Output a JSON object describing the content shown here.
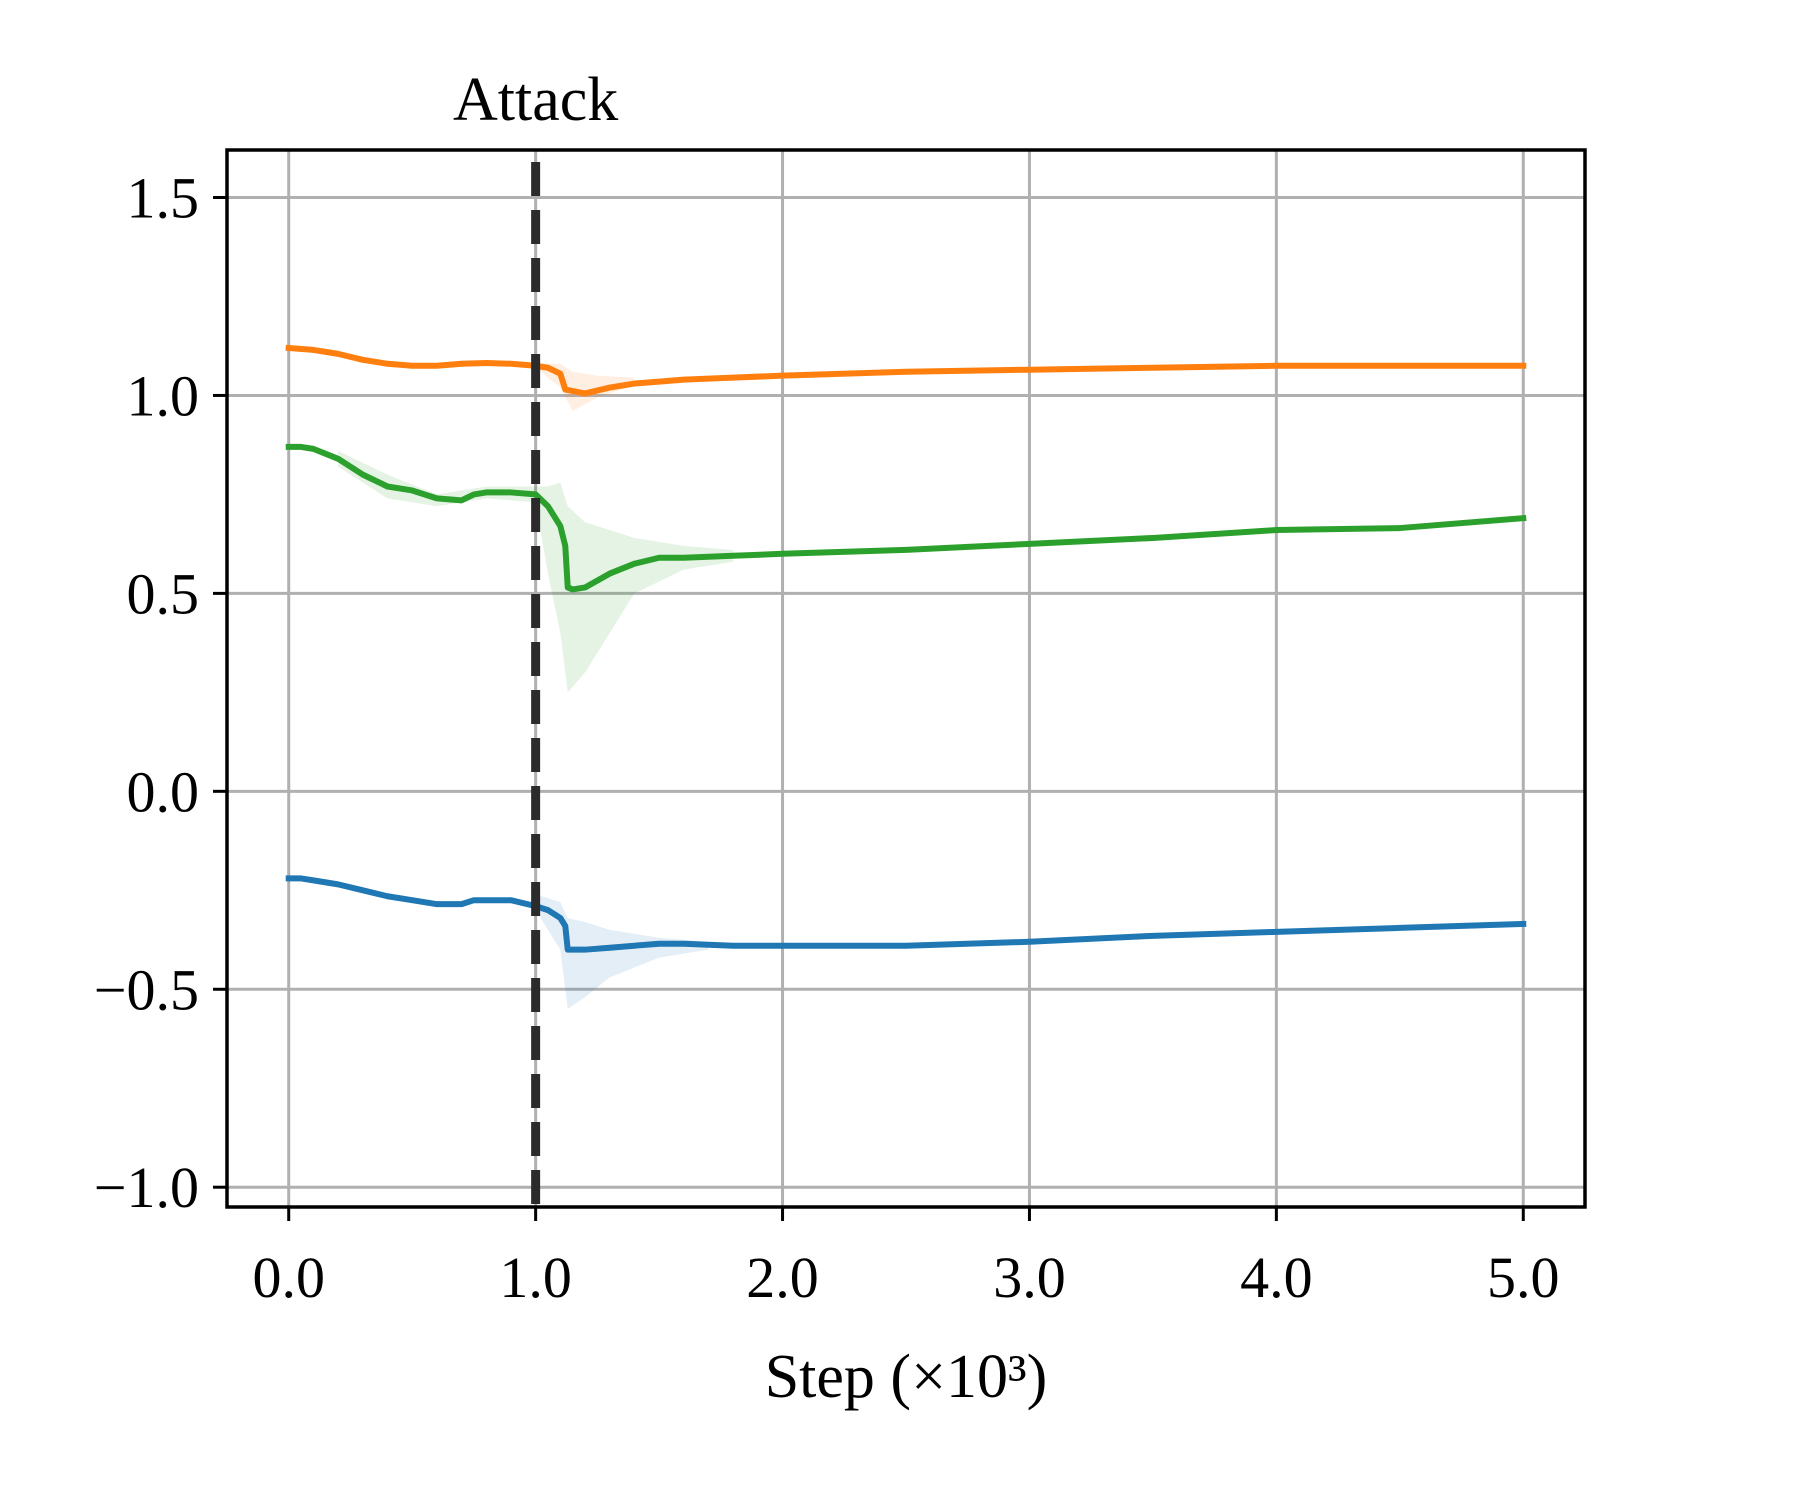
{
  "chart_data": {
    "type": "line",
    "title": "",
    "xlabel": "Step (×10³)",
    "ylabel": "",
    "xlim": [
      -0.25,
      5.25
    ],
    "ylim": [
      -1.05,
      1.62
    ],
    "xticks": [
      0,
      1,
      2,
      3,
      4,
      5
    ],
    "xtick_labels": [
      "0.0",
      "1.0",
      "2.0",
      "3.0",
      "4.0",
      "5.0"
    ],
    "yticks": [
      -1.0,
      -0.5,
      0.0,
      0.5,
      1.0,
      1.5
    ],
    "ytick_labels": [
      "−1.0",
      "−0.5",
      "0.0",
      "0.5",
      "1.0",
      "1.5"
    ],
    "grid": true,
    "annotations": [
      {
        "text": "Attack",
        "x": 1.0,
        "style": "dashed vertical line"
      }
    ],
    "series": [
      {
        "color": "#ff7f0e",
        "x": [
          0,
          0.1,
          0.2,
          0.3,
          0.4,
          0.5,
          0.6,
          0.7,
          0.8,
          0.9,
          1.0,
          1.05,
          1.1,
          1.12,
          1.2,
          1.3,
          1.4,
          1.5,
          1.6,
          1.8,
          2.0,
          2.5,
          3.0,
          3.5,
          4.0,
          4.5,
          5.0
        ],
        "y": [
          1.12,
          1.115,
          1.105,
          1.09,
          1.08,
          1.075,
          1.075,
          1.08,
          1.082,
          1.08,
          1.075,
          1.07,
          1.055,
          1.015,
          1.005,
          1.02,
          1.03,
          1.035,
          1.04,
          1.045,
          1.05,
          1.06,
          1.065,
          1.07,
          1.075,
          1.075,
          1.075
        ],
        "band_x": [
          1.0,
          1.1,
          1.15,
          1.25,
          1.4
        ],
        "band_lower": [
          1.07,
          1.02,
          0.96,
          0.995,
          1.025
        ],
        "band_upper": [
          1.08,
          1.08,
          1.06,
          1.05,
          1.045
        ]
      },
      {
        "color": "#2ca02c",
        "x": [
          0,
          0.05,
          0.1,
          0.2,
          0.3,
          0.4,
          0.5,
          0.6,
          0.7,
          0.75,
          0.8,
          0.9,
          1.0,
          1.05,
          1.1,
          1.12,
          1.13,
          1.15,
          1.2,
          1.3,
          1.4,
          1.5,
          1.6,
          1.8,
          2.0,
          2.5,
          3.0,
          3.5,
          4.0,
          4.5,
          5.0
        ],
        "y": [
          0.87,
          0.87,
          0.865,
          0.84,
          0.8,
          0.77,
          0.76,
          0.74,
          0.735,
          0.75,
          0.755,
          0.755,
          0.75,
          0.72,
          0.67,
          0.62,
          0.515,
          0.51,
          0.515,
          0.55,
          0.575,
          0.59,
          0.59,
          0.595,
          0.6,
          0.61,
          0.625,
          0.64,
          0.66,
          0.665,
          0.69
        ],
        "band_x": [
          0.2,
          0.4,
          0.6,
          0.8,
          1.0,
          1.05,
          1.1,
          1.13,
          1.2,
          1.3,
          1.4,
          1.6,
          1.8
        ],
        "band_lower": [
          0.82,
          0.74,
          0.72,
          0.74,
          0.73,
          0.55,
          0.4,
          0.25,
          0.3,
          0.4,
          0.5,
          0.56,
          0.58
        ],
        "band_upper": [
          0.86,
          0.8,
          0.75,
          0.77,
          0.77,
          0.77,
          0.78,
          0.72,
          0.68,
          0.66,
          0.64,
          0.62,
          0.61
        ]
      },
      {
        "color": "#1f77b4",
        "x": [
          0,
          0.05,
          0.1,
          0.2,
          0.3,
          0.4,
          0.5,
          0.6,
          0.7,
          0.75,
          0.8,
          0.9,
          1.0,
          1.05,
          1.1,
          1.12,
          1.13,
          1.2,
          1.3,
          1.4,
          1.5,
          1.6,
          1.8,
          2.0,
          2.5,
          3.0,
          3.5,
          4.0,
          4.5,
          5.0
        ],
        "y": [
          -0.22,
          -0.22,
          -0.225,
          -0.235,
          -0.25,
          -0.265,
          -0.275,
          -0.285,
          -0.285,
          -0.275,
          -0.275,
          -0.275,
          -0.29,
          -0.3,
          -0.32,
          -0.34,
          -0.4,
          -0.4,
          -0.395,
          -0.39,
          -0.385,
          -0.385,
          -0.39,
          -0.39,
          -0.39,
          -0.38,
          -0.365,
          -0.355,
          -0.345,
          -0.335
        ],
        "band_x": [
          1.0,
          1.1,
          1.13,
          1.2,
          1.3,
          1.5,
          1.7
        ],
        "band_lower": [
          -0.3,
          -0.4,
          -0.55,
          -0.52,
          -0.47,
          -0.42,
          -0.4
        ],
        "band_upper": [
          -0.26,
          -0.28,
          -0.32,
          -0.33,
          -0.35,
          -0.37,
          -0.38
        ]
      }
    ]
  }
}
